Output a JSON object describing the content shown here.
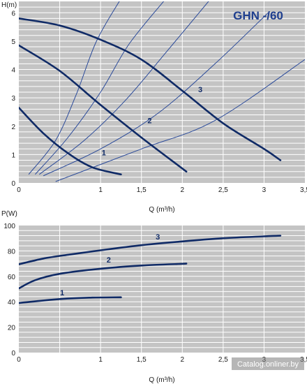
{
  "watermark": "Catalog.onliner.by",
  "colors": {
    "background": "#ffffff",
    "plot_bg": "#c4c4c4",
    "grid": "#ffffff",
    "curve": "#0f2a66",
    "system_curve": "#2a4a9a",
    "title": "#1f3f8f"
  },
  "chart_data": [
    {
      "type": "line",
      "title": "GHN -/60",
      "xlabel": "Q (m³/h)",
      "ylabel": "H(m)",
      "xlim": [
        0,
        3.5
      ],
      "ylim": [
        0,
        6.4
      ],
      "x_ticks": [
        "0",
        "1",
        "1,5",
        "2",
        "2,5",
        "3",
        "3,5"
      ],
      "x_tick_values": [
        0,
        1,
        1.5,
        2,
        2.5,
        3,
        3.5
      ],
      "y_ticks": [
        "0",
        "1",
        "2",
        "3",
        "4",
        "5",
        "6"
      ],
      "y_tick_values": [
        0,
        1,
        2,
        3,
        4,
        5,
        6
      ],
      "grid": true,
      "series": [
        {
          "name": "1",
          "x": [
            0,
            0.3,
            0.6,
            0.9,
            1.25
          ],
          "y": [
            2.65,
            1.75,
            1.05,
            0.55,
            0.3
          ]
        },
        {
          "name": "2",
          "x": [
            0,
            0.5,
            1.0,
            1.5,
            2.05
          ],
          "y": [
            4.85,
            3.95,
            2.75,
            1.6,
            0.4
          ]
        },
        {
          "name": "3",
          "x": [
            0,
            0.5,
            1.0,
            1.5,
            2.0,
            2.5,
            3.0,
            3.2
          ],
          "y": [
            5.8,
            5.55,
            5.05,
            4.35,
            3.25,
            2.1,
            1.2,
            0.8
          ]
        }
      ],
      "series_labels": [
        {
          "text": "1",
          "x": 1.04,
          "y": 0.97
        },
        {
          "text": "2",
          "x": 1.6,
          "y": 2.1
        },
        {
          "text": "3",
          "x": 2.22,
          "y": 3.2
        }
      ],
      "system_curves": [
        {
          "x": [
            0.12,
            0.45,
            0.7,
            0.95,
            1.25
          ],
          "y": [
            0.3,
            1.5,
            3.1,
            5.0,
            6.5
          ]
        },
        {
          "x": [
            0.2,
            0.6,
            1.0,
            1.35,
            1.8
          ],
          "y": [
            0.3,
            1.6,
            3.2,
            4.9,
            6.5
          ]
        },
        {
          "x": [
            0.25,
            0.8,
            1.3,
            1.8,
            2.35
          ],
          "y": [
            0.3,
            1.5,
            2.9,
            4.6,
            6.5
          ]
        },
        {
          "x": [
            0.3,
            1.0,
            1.7,
            2.4,
            3.05
          ],
          "y": [
            0.25,
            1.2,
            2.45,
            4.2,
            6.0
          ]
        },
        {
          "x": [
            0.45,
            1.5,
            2.4,
            3.5
          ],
          "y": [
            0.05,
            1.2,
            2.2,
            4.35
          ]
        }
      ]
    },
    {
      "type": "line",
      "xlabel": "Q (m³/h)",
      "ylabel": "P(W)",
      "xlim": [
        0,
        3.5
      ],
      "ylim": [
        0,
        100
      ],
      "x_ticks": [
        "0",
        "1",
        "1,5",
        "2",
        "2,5",
        "3",
        "3,5"
      ],
      "x_tick_values": [
        0,
        1,
        1.5,
        2,
        2.5,
        3,
        3.5
      ],
      "y_ticks": [
        "0",
        "20",
        "40",
        "60",
        "80",
        "100"
      ],
      "y_tick_values": [
        0,
        20,
        40,
        60,
        80,
        100
      ],
      "grid": true,
      "series": [
        {
          "name": "1",
          "x": [
            0,
            0.3,
            0.6,
            0.9,
            1.25
          ],
          "y": [
            39,
            41,
            42.5,
            43.3,
            43.5
          ]
        },
        {
          "name": "2",
          "x": [
            0,
            0.2,
            0.5,
            1.0,
            1.5,
            2.05
          ],
          "y": [
            50.5,
            57,
            62,
            66,
            68.5,
            70
          ]
        },
        {
          "name": "3",
          "x": [
            0,
            0.3,
            0.6,
            1.0,
            1.5,
            2.0,
            2.5,
            3.0,
            3.2
          ],
          "y": [
            69.5,
            74,
            77,
            80.5,
            84.5,
            87.5,
            90,
            91.5,
            92
          ]
        }
      ],
      "series_labels": [
        {
          "text": "1",
          "x": 0.53,
          "y": 45
        },
        {
          "text": "2",
          "x": 1.1,
          "y": 71
        },
        {
          "text": "3",
          "x": 1.7,
          "y": 89
        }
      ]
    }
  ]
}
